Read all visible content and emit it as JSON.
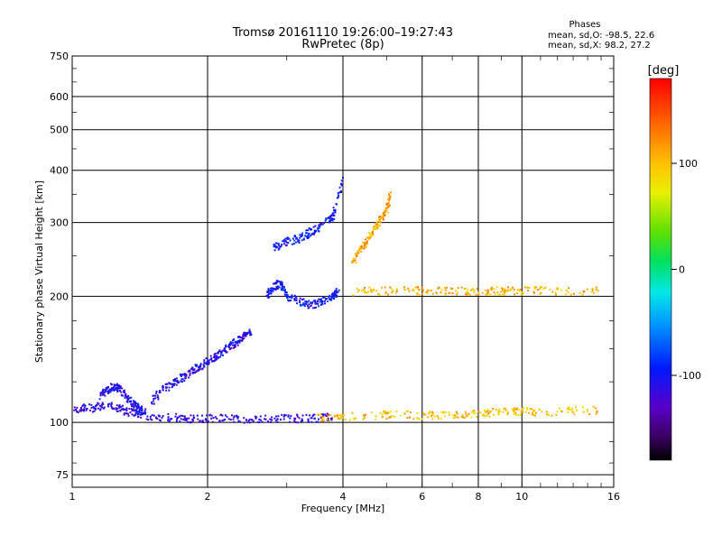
{
  "header": {
    "title_line1": "Tromsø 20161110 19:26:00–19:27:43",
    "title_line2": "RwPretec (8p)",
    "phases_label": "Phases",
    "stats_o": "mean, sd,O: -98.5, 22.6",
    "stats_x": "mean, sd,X:  98.2, 27.2"
  },
  "chart_data": {
    "type": "scatter",
    "xlabel": "Frequency [MHz]",
    "ylabel": "Stationary phase Virtual Height [km]",
    "xscale": "log",
    "yscale": "log",
    "xlim": [
      1,
      16
    ],
    "ylim": [
      70,
      750
    ],
    "xticks": [
      1,
      2,
      4,
      6,
      8,
      10,
      16
    ],
    "xtick_labels": [
      "1",
      "2",
      "4",
      "6",
      "8",
      "10",
      "16"
    ],
    "yticks": [
      75,
      100,
      200,
      300,
      400,
      500,
      600,
      750
    ],
    "ytick_labels": [
      "75",
      "100",
      "200",
      "300",
      "400",
      "500",
      "600",
      "750"
    ],
    "grid": true,
    "colorbar": {
      "label": "[deg]",
      "min": -180,
      "max": 180,
      "ticks": [
        100,
        0,
        -100
      ],
      "tick_labels": [
        "100",
        "0",
        "-100"
      ]
    },
    "traces": [
      {
        "description": "O-mode E-region trace",
        "x": [
          1.0,
          1.1,
          1.2,
          1.3,
          1.4,
          1.6,
          1.8,
          2.0,
          2.3,
          2.6,
          3.0,
          3.4,
          3.8
        ],
        "y": [
          108,
          108,
          110,
          107,
          104,
          103,
          102,
          102,
          102,
          102,
          102,
          102,
          103
        ],
        "phase": -115
      },
      {
        "description": "E-region cusp",
        "x": [
          1.15,
          1.2,
          1.25,
          1.3,
          1.35,
          1.4,
          1.45
        ],
        "y": [
          115,
          120,
          122,
          118,
          112,
          108,
          106
        ],
        "phase": -105
      },
      {
        "description": "F1 trace",
        "x": [
          1.5,
          1.6,
          1.7,
          1.8,
          1.9,
          2.0,
          2.1,
          2.2,
          2.3,
          2.4,
          2.5
        ],
        "y": [
          112,
          120,
          125,
          130,
          135,
          140,
          145,
          150,
          155,
          160,
          165
        ],
        "phase": -110
      },
      {
        "description": "F2 O-mode lower",
        "x": [
          2.7,
          2.8,
          2.9,
          3.0,
          3.2,
          3.4,
          3.6,
          3.8,
          3.9
        ],
        "y": [
          200,
          210,
          215,
          200,
          195,
          190,
          195,
          200,
          205
        ],
        "phase": -100
      },
      {
        "description": "F2 O-mode upper",
        "x": [
          2.8,
          3.0,
          3.2,
          3.4,
          3.6,
          3.8,
          4.0
        ],
        "y": [
          260,
          270,
          275,
          285,
          295,
          310,
          380
        ],
        "phase": -95
      },
      {
        "description": "F2 X-mode",
        "x": [
          4.2,
          4.4,
          4.6,
          4.8,
          5.0,
          5.1
        ],
        "y": [
          240,
          260,
          280,
          300,
          320,
          350
        ],
        "phase": 110
      },
      {
        "description": "Sporadic/F trace ~205 km",
        "x": [
          4.2,
          5.0,
          6.0,
          7.0,
          8.0,
          9.0,
          10.0,
          12.0,
          15.0
        ],
        "y": [
          205,
          206,
          206,
          205,
          206,
          206,
          206,
          206,
          206
        ],
        "phase": 105
      },
      {
        "description": "X-mode E-region echoes",
        "x": [
          3.5,
          4.0,
          5.0,
          6.0,
          7.0,
          8.0,
          9.0,
          10.0,
          12.0,
          15.0
        ],
        "y": [
          103,
          103,
          104,
          104,
          104,
          105,
          106,
          106,
          106,
          107
        ],
        "phase": 100
      }
    ]
  }
}
